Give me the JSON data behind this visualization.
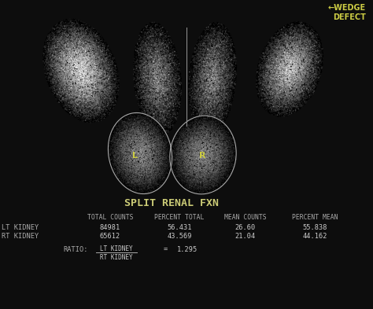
{
  "bg_color": "#0d0d0d",
  "title": "SPLIT RENAL FXN",
  "title_color": "#cccc77",
  "title_fontsize": 9.5,
  "wedge_label": "←WEDGE\nDEFECT",
  "wedge_color": "#cccc44",
  "wedge_fontsize": 7,
  "kidney_label_color": "#cccc44",
  "table_header_color": "#aaaaaa",
  "table_data_color": "#cccccc",
  "table_label_color": "#aaaaaa",
  "headers": [
    "TOTAL COUNTS",
    "PERCENT TOTAL",
    "MEAN COUNTS",
    "PERCENT MEAN"
  ],
  "row_labels": [
    "LT KIDNEY",
    "RT KIDNEY"
  ],
  "total_counts": [
    "84981",
    "65612"
  ],
  "percent_total": [
    "56.431",
    "43.569"
  ],
  "mean_counts": [
    "26.60",
    "21.04"
  ],
  "percent_mean": [
    "55.838",
    "44.162"
  ],
  "ratio_label": "RATIO:",
  "ratio_num": "LT KIDNEY",
  "ratio_den": "RT KIDNEY",
  "ratio_value": "1.295"
}
